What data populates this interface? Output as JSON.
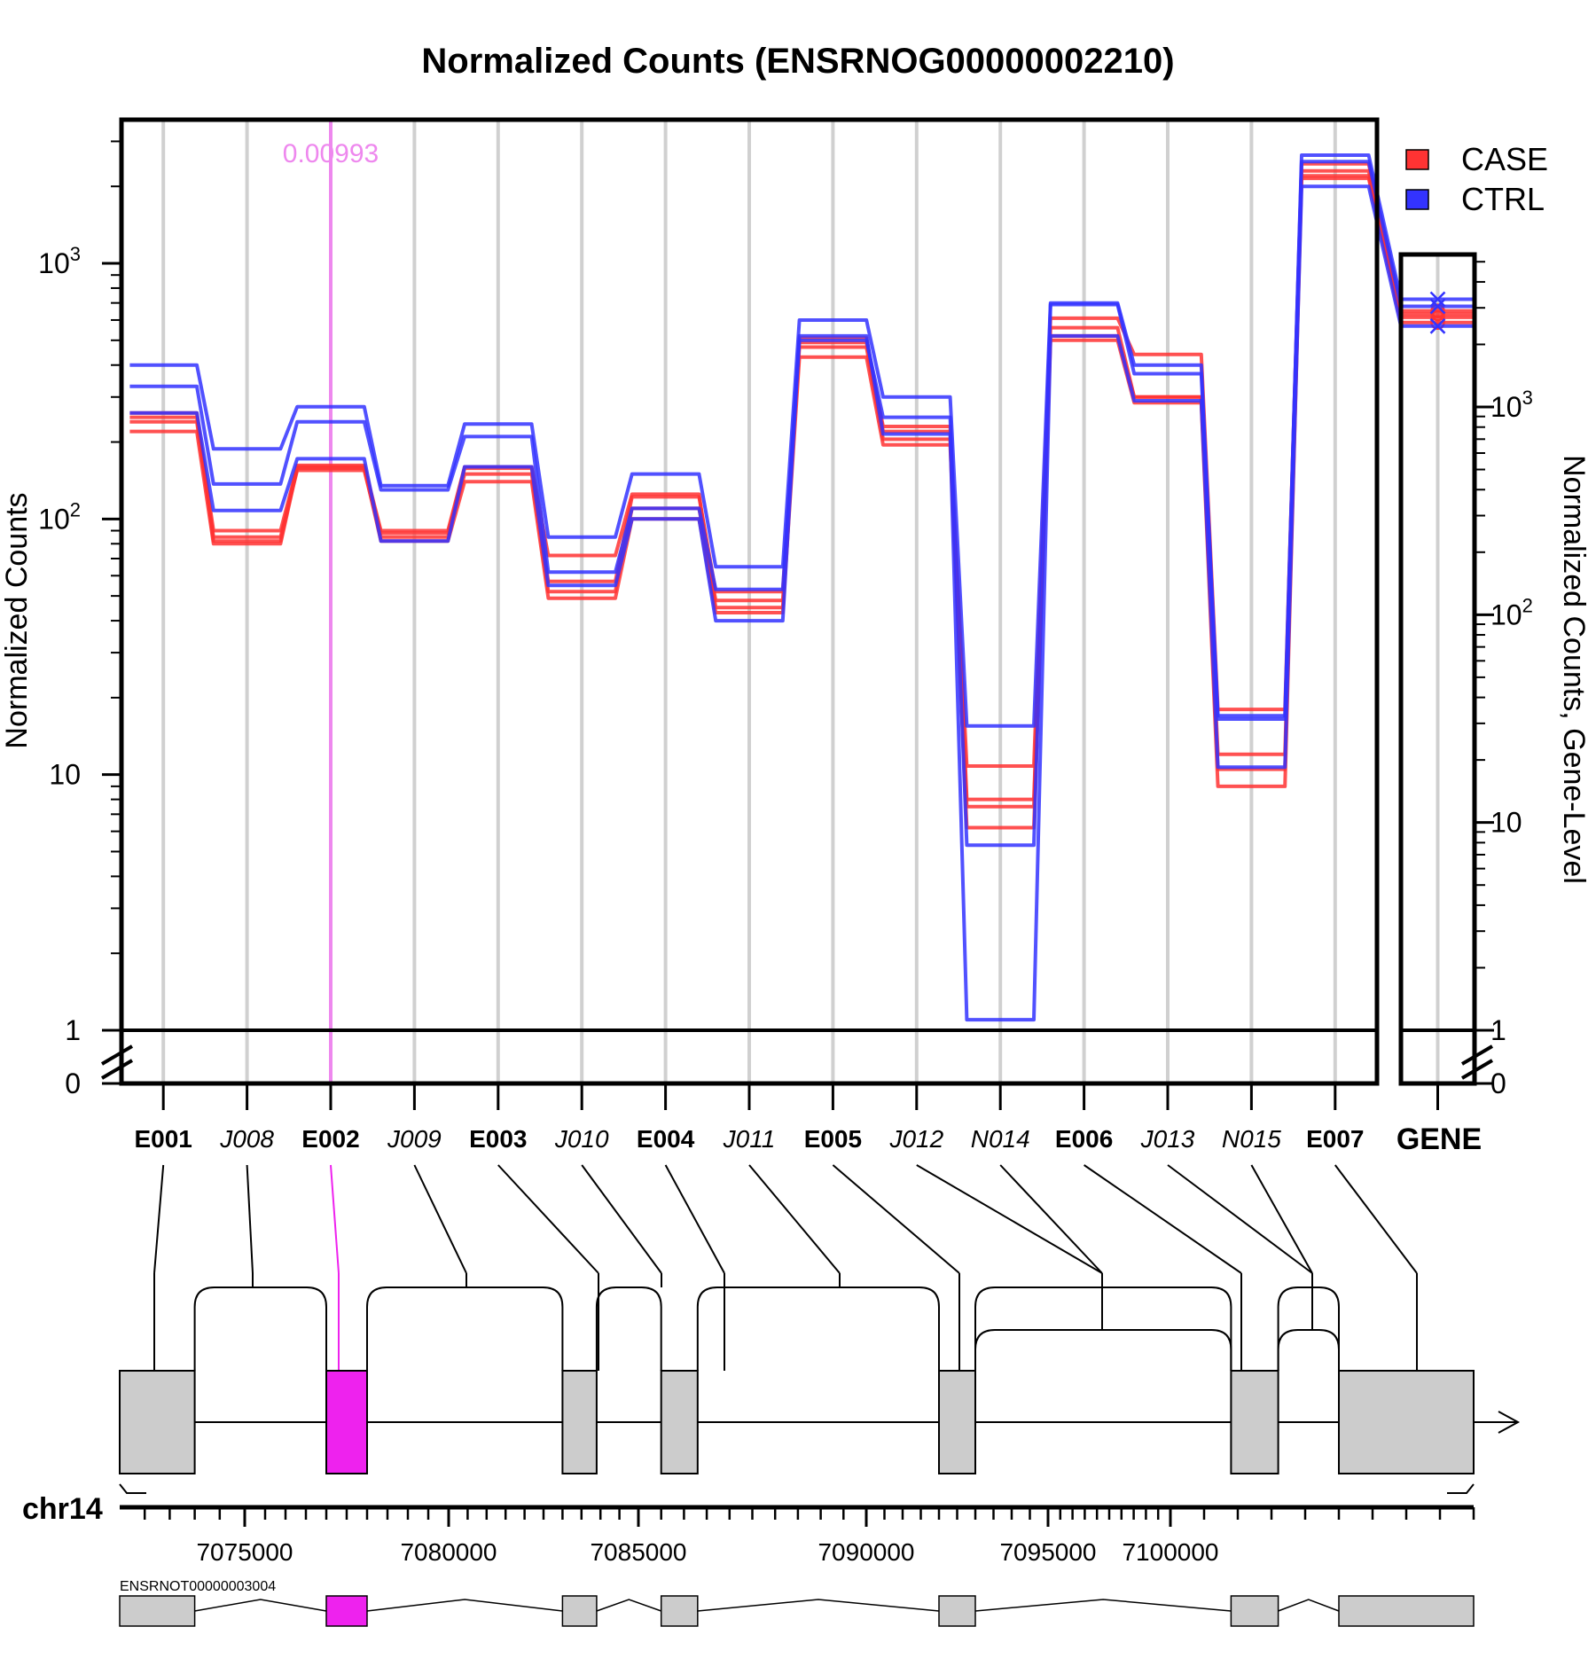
{
  "chart_data": {
    "type": "line",
    "title": "Normalized Counts (ENSRNOG00000002210)",
    "ylabel": "Normalized Counts",
    "ylabel_right": "Normalized Counts, Gene-Level",
    "y_scale": "log",
    "ylim": [
      0,
      3000
    ],
    "y_ticks": [
      {
        "value": 0,
        "label": "0"
      },
      {
        "value": 1,
        "label": "1"
      },
      {
        "value": 10,
        "label": "10"
      },
      {
        "value": 100,
        "label": "10",
        "sup": "2"
      },
      {
        "value": 1000,
        "label": "10",
        "sup": "3"
      }
    ],
    "gene_y_ticks": [
      {
        "value": 0,
        "label": "0"
      },
      {
        "value": 1,
        "label": "1"
      },
      {
        "value": 10,
        "label": "10"
      },
      {
        "value": 100,
        "label": "10",
        "sup": "2"
      },
      {
        "value": 1000,
        "label": "10",
        "sup": "3"
      }
    ],
    "grid": true,
    "legend_position": "top-right",
    "legend": [
      {
        "label": "CASE",
        "color": "#ff3333"
      },
      {
        "label": "CTRL",
        "color": "#3333ff"
      }
    ],
    "features": [
      {
        "id": "E001",
        "type": "exon"
      },
      {
        "id": "J008",
        "type": "junction"
      },
      {
        "id": "E002",
        "type": "exon"
      },
      {
        "id": "J009",
        "type": "junction"
      },
      {
        "id": "E003",
        "type": "exon"
      },
      {
        "id": "J010",
        "type": "junction"
      },
      {
        "id": "E004",
        "type": "exon"
      },
      {
        "id": "J011",
        "type": "junction"
      },
      {
        "id": "E005",
        "type": "exon"
      },
      {
        "id": "J012",
        "type": "junction"
      },
      {
        "id": "N014",
        "type": "novel"
      },
      {
        "id": "E006",
        "type": "exon"
      },
      {
        "id": "J013",
        "type": "junction"
      },
      {
        "id": "N015",
        "type": "novel"
      },
      {
        "id": "E007",
        "type": "exon"
      }
    ],
    "gene_label": "GENE",
    "highlight": {
      "feature": "E002",
      "label": "0.00993",
      "color": "#ee88ee"
    },
    "series": [
      {
        "group": "CASE",
        "color": "#ff3333",
        "values": [
          250,
          90,
          160,
          88,
          158,
          57,
          122,
          52,
          510,
          220,
          10.8,
          610,
          440,
          18,
          2450
        ]
      },
      {
        "group": "CASE",
        "color": "#ff3333",
        "values": [
          240,
          85,
          155,
          85,
          150,
          52,
          110,
          48,
          470,
          205,
          7.5,
          560,
          300,
          12,
          2300
        ]
      },
      {
        "group": "CASE",
        "color": "#ff3333",
        "values": [
          220,
          80,
          158,
          82,
          140,
          49,
          100,
          43,
          430,
          195,
          6.2,
          500,
          285,
          9,
          2150
        ]
      },
      {
        "group": "CASE",
        "color": "#ff3333",
        "values": [
          260,
          82,
          162,
          90,
          160,
          72,
          125,
          45,
          490,
          230,
          8.0,
          520,
          300,
          10.5,
          2200
        ]
      },
      {
        "group": "CTRL",
        "color": "#3333ff",
        "values": [
          400,
          188,
          275,
          135,
          235,
          85,
          150,
          65,
          600,
          300,
          15.5,
          700,
          400,
          16.5,
          2650
        ]
      },
      {
        "group": "CTRL",
        "color": "#3333ff",
        "values": [
          330,
          137,
          240,
          130,
          210,
          62,
          110,
          53,
          500,
          250,
          5.3,
          690,
          370,
          17,
          2500
        ]
      },
      {
        "group": "CTRL",
        "color": "#3333ff",
        "values": [
          260,
          108,
          172,
          82,
          160,
          55,
          100,
          40,
          520,
          215,
          1.1,
          520,
          290,
          10.7,
          2000
        ]
      }
    ],
    "gene_level": [
      {
        "group": "CASE",
        "color": "#ff3333",
        "value": 2900
      },
      {
        "group": "CASE",
        "color": "#ff3333",
        "value": 2700
      },
      {
        "group": "CASE",
        "color": "#ff3333",
        "value": 2550
      },
      {
        "group": "CASE",
        "color": "#ff3333",
        "value": 2800
      },
      {
        "group": "CTRL",
        "color": "#3333ff",
        "value": 3300
      },
      {
        "group": "CTRL",
        "color": "#3333ff",
        "value": 3050
      },
      {
        "group": "CTRL",
        "color": "#3333ff",
        "value": 2450
      }
    ],
    "genome": {
      "chromosome": "chr14",
      "x_range": [
        7072500,
        7104500
      ],
      "x_ticks": [
        7075000,
        7080000,
        7085000,
        7090000,
        7095000,
        7100000
      ],
      "x_scale": "compressed",
      "exons": [
        {
          "id": "E001",
          "start": 7072500,
          "end": 7074000
        },
        {
          "id": "E002",
          "start": 7077000,
          "end": 7078000
        },
        {
          "id": "E003",
          "start": 7083000,
          "end": 7083900
        },
        {
          "id": "E004",
          "start": 7085500,
          "end": 7086300
        },
        {
          "id": "E005",
          "start": 7092000,
          "end": 7093000
        },
        {
          "id": "E006",
          "start": 7100900,
          "end": 7101600
        },
        {
          "id": "E007",
          "start": 7102500,
          "end": 7104500
        }
      ],
      "transcript": "ENSRNOT00000003004",
      "strand": "+"
    }
  }
}
